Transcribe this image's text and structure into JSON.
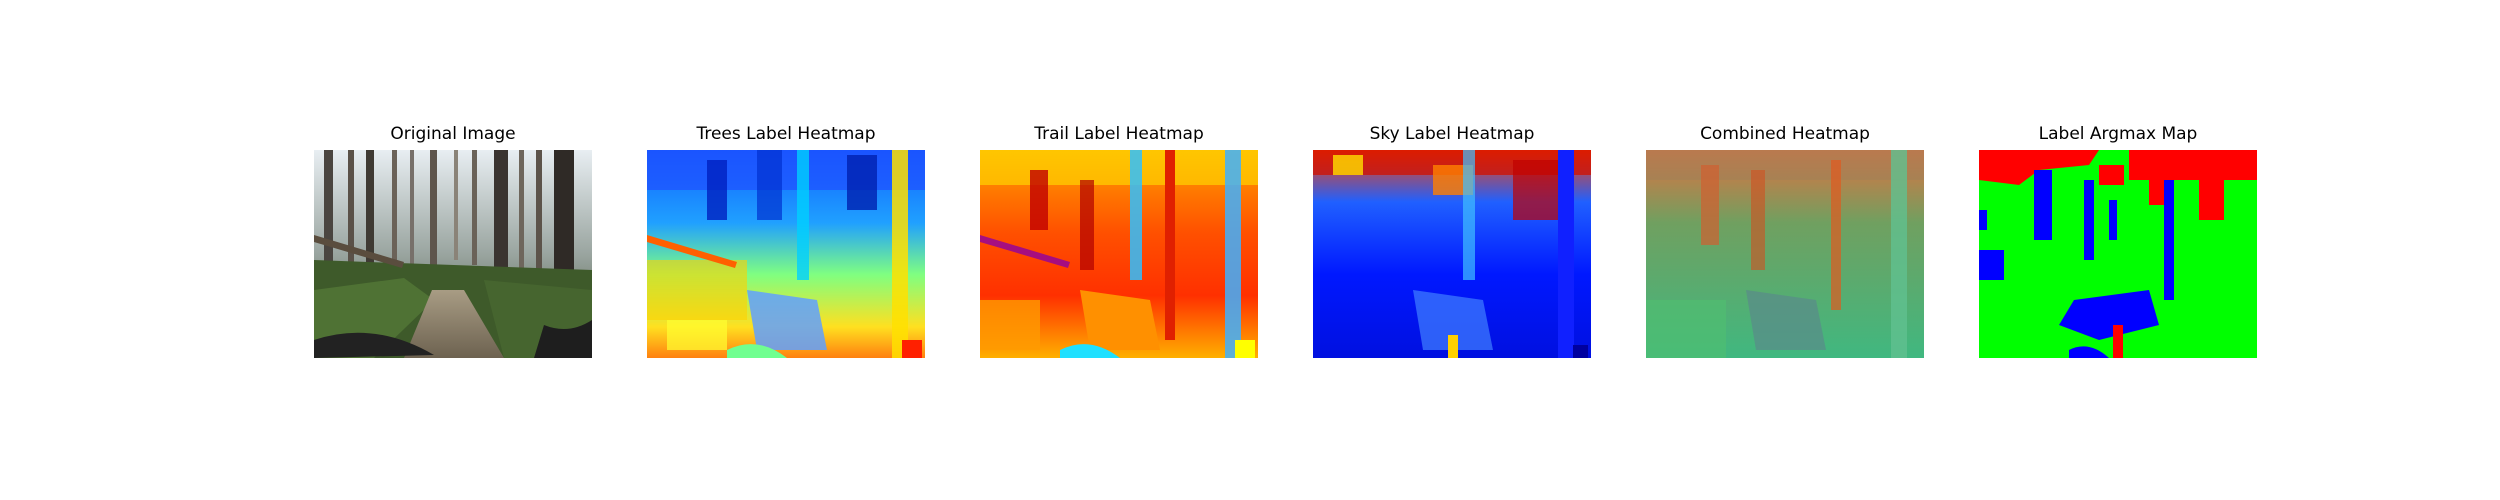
{
  "panels": [
    {
      "title": "Original Image"
    },
    {
      "title": "Trees Label Heatmap"
    },
    {
      "title": "Trail Label Heatmap"
    },
    {
      "title": "Sky Label Heatmap"
    },
    {
      "title": "Combined Heatmap"
    },
    {
      "title": "Label Argmax Map"
    }
  ],
  "colors": {
    "background": "#ffffff",
    "argmax_trees": "#00ff00",
    "argmax_trail": "#0000ff",
    "argmax_sky": "#ff0000",
    "colormap": "jet"
  }
}
